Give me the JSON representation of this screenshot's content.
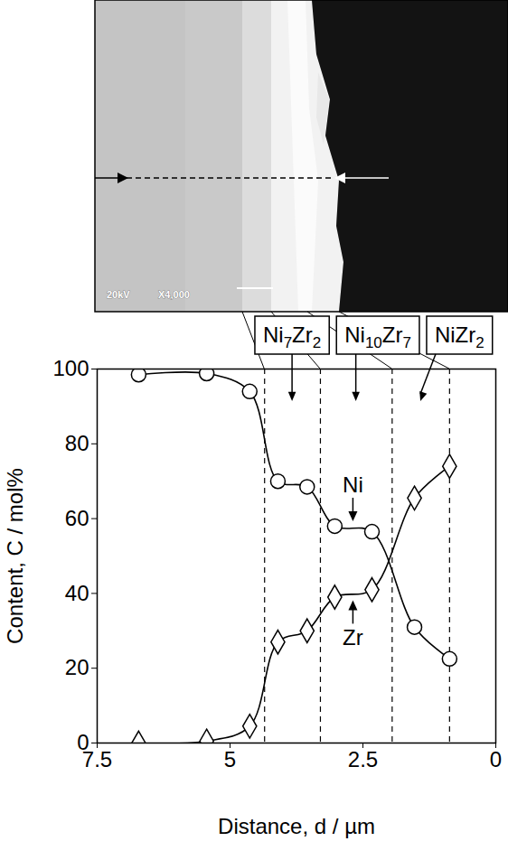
{
  "chart_data": {
    "type": "line",
    "x_label": "Distance, d / µm",
    "y_label": "Content, C / mol%",
    "xlim": [
      7.5,
      0
    ],
    "ylim": [
      0,
      100
    ],
    "xticks": [
      7.5,
      5,
      2.5,
      0
    ],
    "yticks": [
      0,
      20,
      40,
      60,
      80,
      100
    ],
    "x": [
      6.72,
      5.44,
      4.63,
      4.1,
      3.55,
      3.03,
      2.33,
      1.53,
      0.87
    ],
    "series": [
      {
        "name": "Ni",
        "color": "#000000",
        "marker": "circle",
        "values": [
          98.5,
          98.8,
          94,
          70,
          68.5,
          58,
          56.5,
          31,
          22.5
        ]
      },
      {
        "name": "Zr",
        "color": "#000000",
        "marker": "diamond",
        "values": [
          0,
          0.5,
          4.5,
          27,
          30,
          39,
          41,
          65.5,
          74
        ]
      }
    ],
    "phases": [
      {
        "name": "Ni7Zr2",
        "from": 4.35,
        "to": 3.3
      },
      {
        "name": "Ni10Zr7",
        "from": 3.3,
        "to": 1.95
      },
      {
        "name": "NiZr2",
        "from": 1.95,
        "to": 0.87
      }
    ],
    "image_labels": [
      "20kV",
      "X4,000"
    ]
  }
}
